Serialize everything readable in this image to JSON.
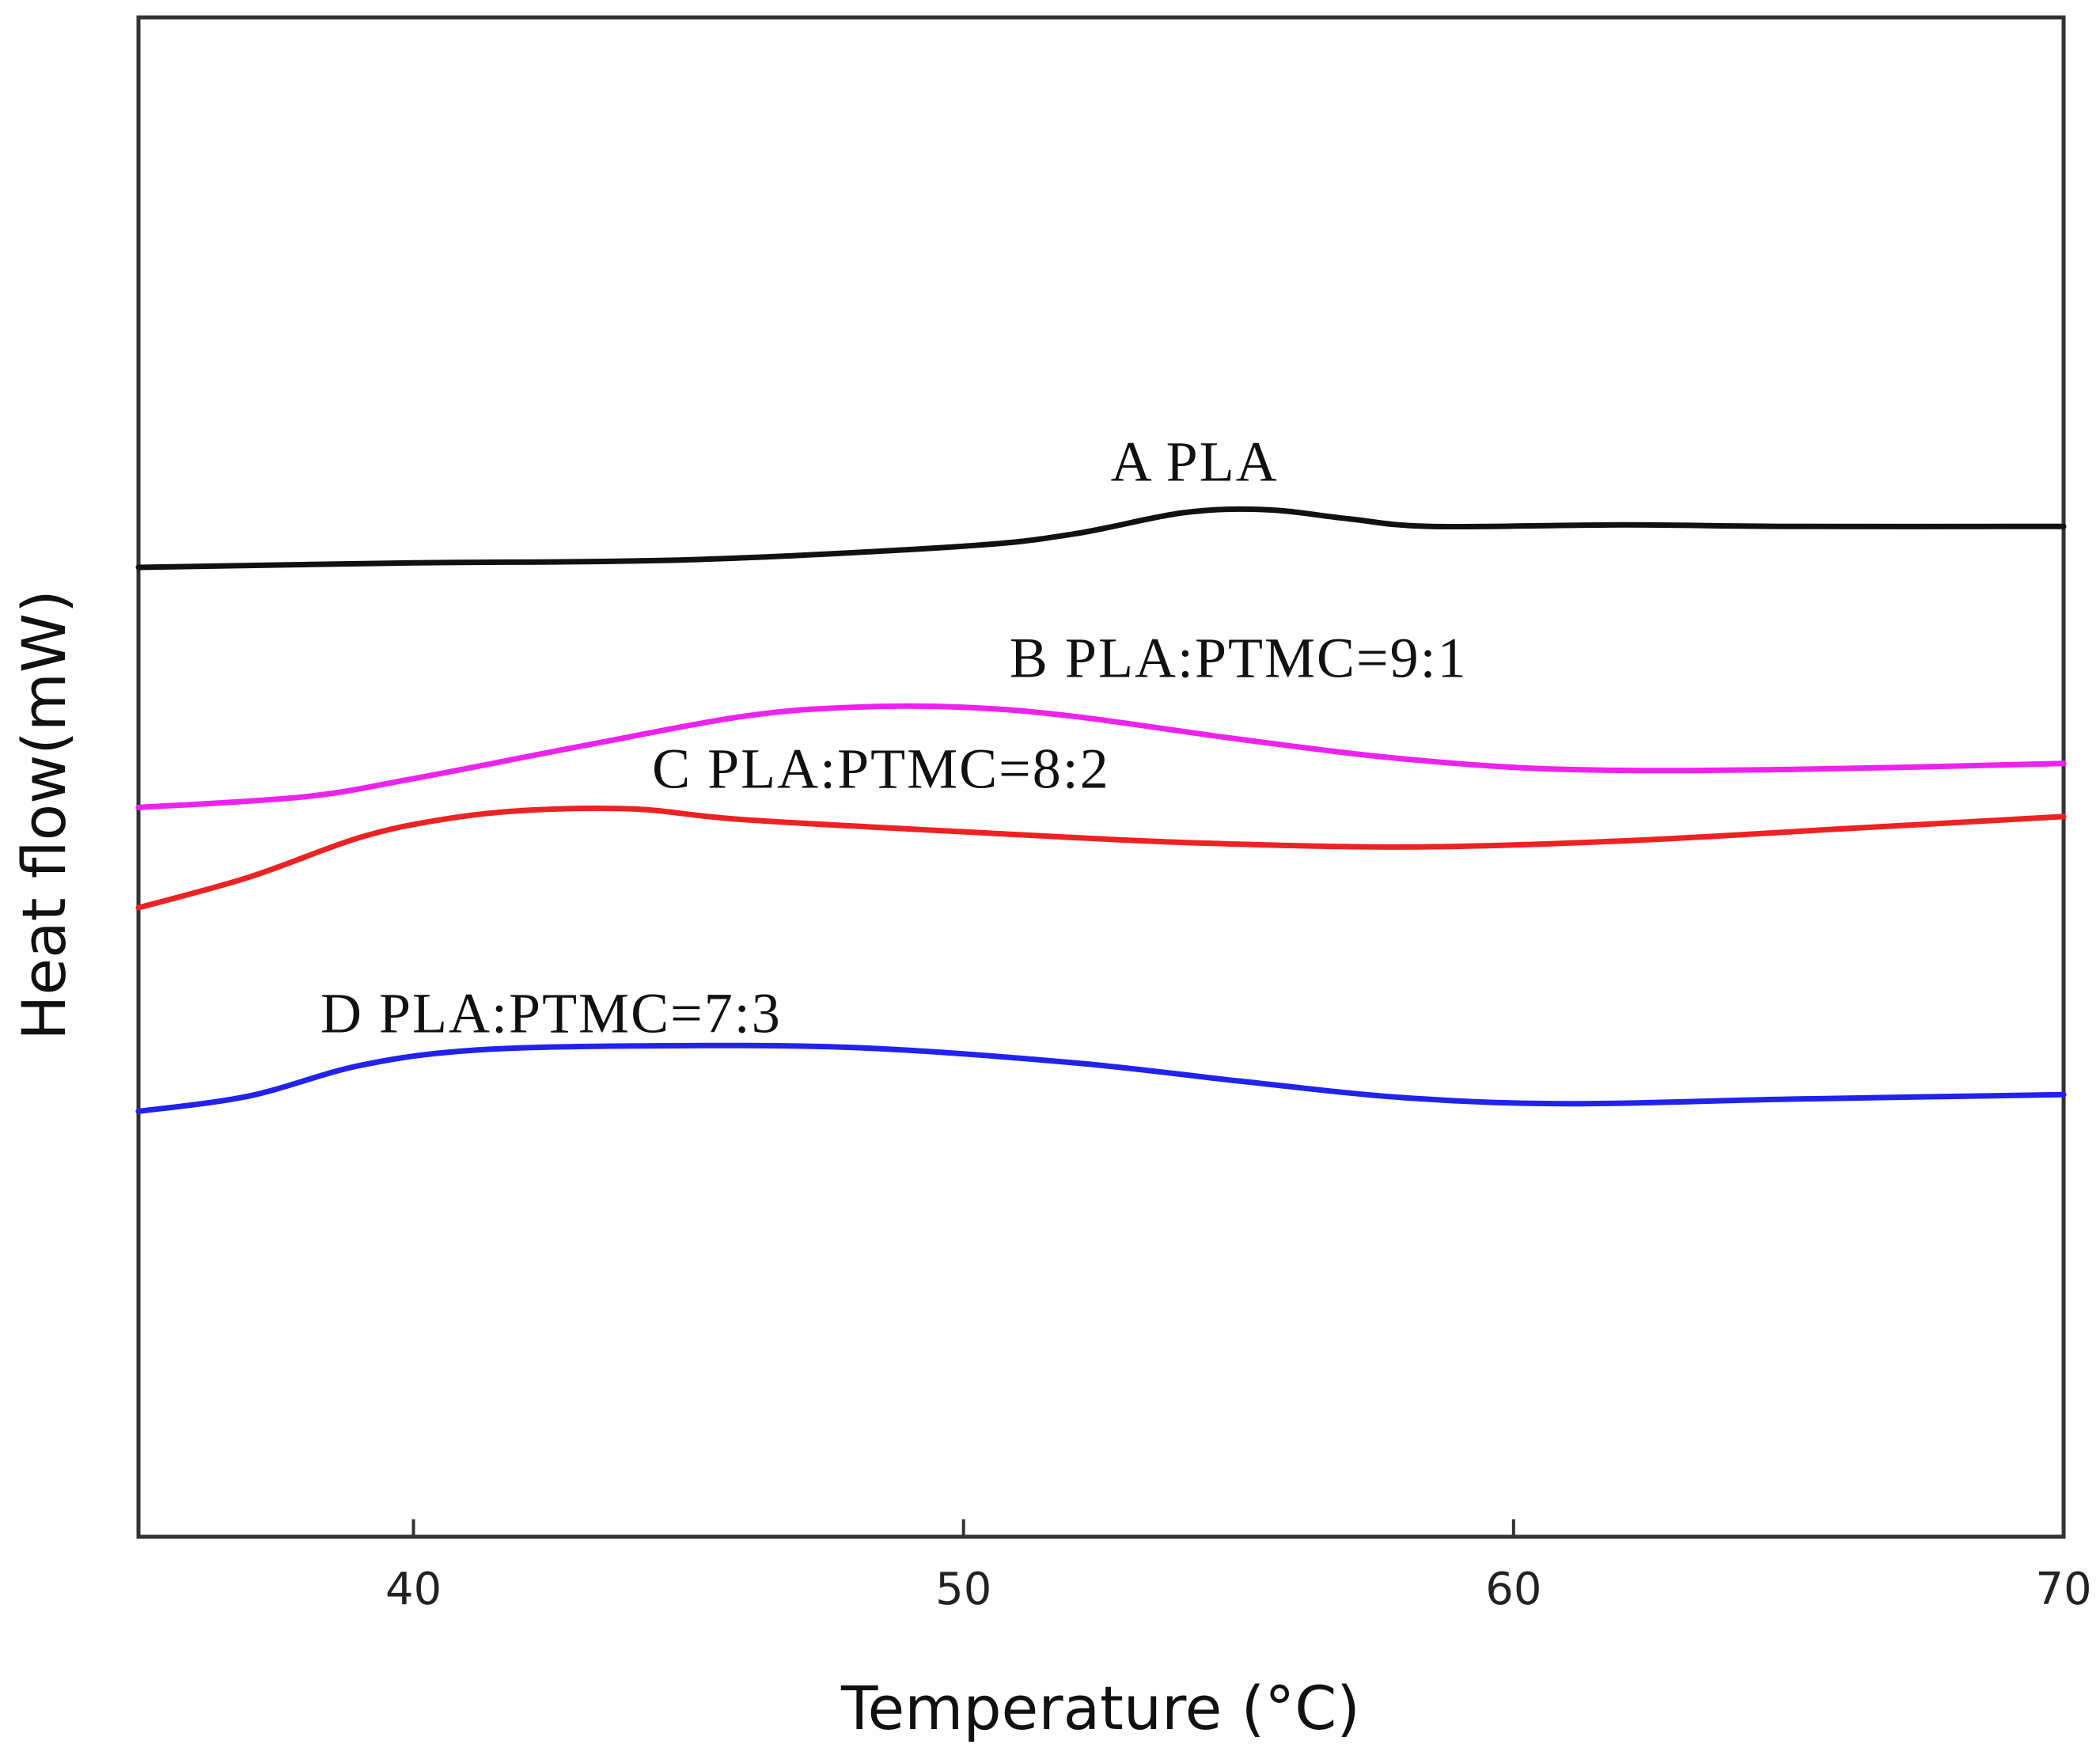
{
  "chart_data": {
    "type": "line",
    "title": "",
    "xlabel": "Temperature (°C)",
    "ylabel": "Heat flow(mW)",
    "xlim": [
      35,
      70
    ],
    "ylim": [
      0,
      100
    ],
    "x_ticks": [
      40,
      50,
      60,
      70
    ],
    "x_tick_labels": [
      "40",
      "50",
      "60",
      "70"
    ],
    "y_ticks_shown": false,
    "grid": false,
    "legend": "none (series labelled directly above curves)",
    "series": [
      {
        "name": "A PLA",
        "color": "#111111",
        "points": [
          [
            35,
            63.8
          ],
          [
            40,
            64.1
          ],
          [
            45,
            64.3
          ],
          [
            50,
            65.2
          ],
          [
            52,
            66.0
          ],
          [
            54,
            67.4
          ],
          [
            55.5,
            67.6
          ],
          [
            57,
            67.0
          ],
          [
            58.5,
            66.5
          ],
          [
            62,
            66.6
          ],
          [
            65,
            66.5
          ],
          [
            70,
            66.5
          ]
        ]
      },
      {
        "name": "B PLA:PTMC=9:1",
        "color": "#ee22ee",
        "points": [
          [
            35,
            48.0
          ],
          [
            38,
            48.7
          ],
          [
            40,
            49.9
          ],
          [
            43,
            52.0
          ],
          [
            46,
            54.0
          ],
          [
            48,
            54.6
          ],
          [
            50,
            54.6
          ],
          [
            52,
            54.0
          ],
          [
            55,
            52.5
          ],
          [
            58,
            51.2
          ],
          [
            61,
            50.5
          ],
          [
            65,
            50.5
          ],
          [
            70,
            50.9
          ]
        ]
      },
      {
        "name": "C PLA:PTMC=8:2",
        "color": "#ee2222",
        "points": [
          [
            35,
            41.4
          ],
          [
            37,
            43.4
          ],
          [
            39,
            46.0
          ],
          [
            40.5,
            47.2
          ],
          [
            42,
            47.8
          ],
          [
            44,
            47.9
          ],
          [
            46,
            47.2
          ],
          [
            50,
            46.4
          ],
          [
            54,
            45.7
          ],
          [
            58,
            45.4
          ],
          [
            62,
            45.8
          ],
          [
            66,
            46.6
          ],
          [
            70,
            47.4
          ]
        ]
      },
      {
        "name": "D PLA:PTMC=7:3",
        "color": "#2222ee",
        "points": [
          [
            35,
            28.0
          ],
          [
            37,
            29.0
          ],
          [
            39,
            31.0
          ],
          [
            41,
            32.0
          ],
          [
            44,
            32.3
          ],
          [
            48,
            32.2
          ],
          [
            52,
            31.2
          ],
          [
            55,
            30.0
          ],
          [
            58,
            28.9
          ],
          [
            61,
            28.5
          ],
          [
            65,
            28.8
          ],
          [
            70,
            29.1
          ]
        ]
      }
    ],
    "annotations": [
      {
        "text": "A PLA",
        "x": 54.2,
        "y": 69.5
      },
      {
        "text": "B PLA:PTMC=9:1",
        "x": 55.0,
        "y": 56.6
      },
      {
        "text": "C PLA:PTMC=8:2",
        "x": 48.5,
        "y": 49.3
      },
      {
        "text": "D PLA:PTMC=7:3",
        "x": 42.5,
        "y": 33.2
      }
    ]
  }
}
